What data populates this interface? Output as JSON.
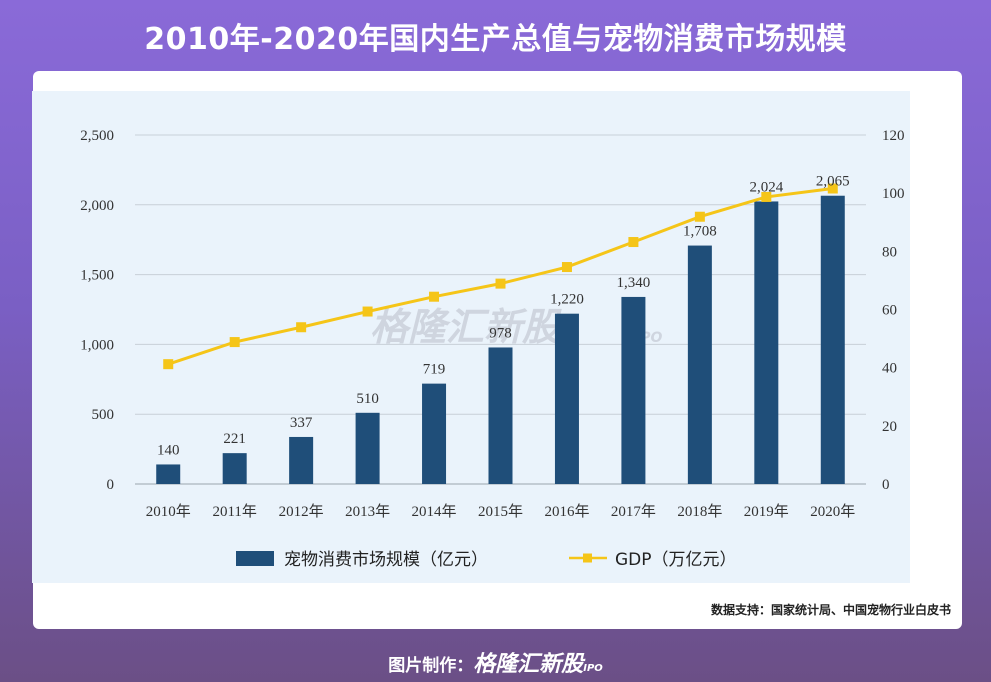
{
  "page_title": "2010年-2020年国内生产总值与宠物消费市场规模",
  "watermark": {
    "brand": "格隆汇新股",
    "sub": "IPO"
  },
  "source": "数据支持：国家统计局、中国宠物行业白皮书",
  "footer": {
    "prefix": "图片制作：",
    "brand": "格隆汇新股",
    "sub": "IPO"
  },
  "colors": {
    "bar": "#1f4e79",
    "line": "#f5c518",
    "grid": "#c8d0d8"
  },
  "chart_data": {
    "type": "bar+line",
    "title": "",
    "categories": [
      "2010年",
      "2011年",
      "2012年",
      "2013年",
      "2014年",
      "2015年",
      "2016年",
      "2017年",
      "2018年",
      "2019年",
      "2020年"
    ],
    "series": [
      {
        "name": "宠物消费市场规模（亿元）",
        "type": "bar",
        "axis": "left",
        "values": [
          140,
          221,
          337,
          510,
          719,
          978,
          1220,
          1340,
          1708,
          2024,
          2065
        ],
        "labels": [
          "140",
          "221",
          "337",
          "510",
          "719",
          "978",
          "1,220",
          "1,340",
          "1,708",
          "2,024",
          "2,065"
        ]
      },
      {
        "name": "GDP（万亿元）",
        "type": "line",
        "axis": "right",
        "values": [
          41.2,
          48.8,
          53.9,
          59.3,
          64.4,
          68.9,
          74.6,
          83.2,
          91.9,
          98.7,
          101.6
        ]
      }
    ],
    "y_left": {
      "lim": [
        0,
        2500
      ],
      "ticks": [
        0,
        500,
        1000,
        1500,
        2000,
        2500
      ],
      "tick_labels": [
        "0",
        "500",
        "1,000",
        "1,500",
        "2,000",
        "2,500"
      ]
    },
    "y_right": {
      "lim": [
        0,
        120
      ],
      "ticks": [
        0,
        20,
        40,
        60,
        80,
        100,
        120
      ],
      "tick_labels": [
        "0",
        "20",
        "40",
        "60",
        "80",
        "100",
        "120"
      ]
    },
    "grid": true,
    "legend": "bottom-center"
  }
}
